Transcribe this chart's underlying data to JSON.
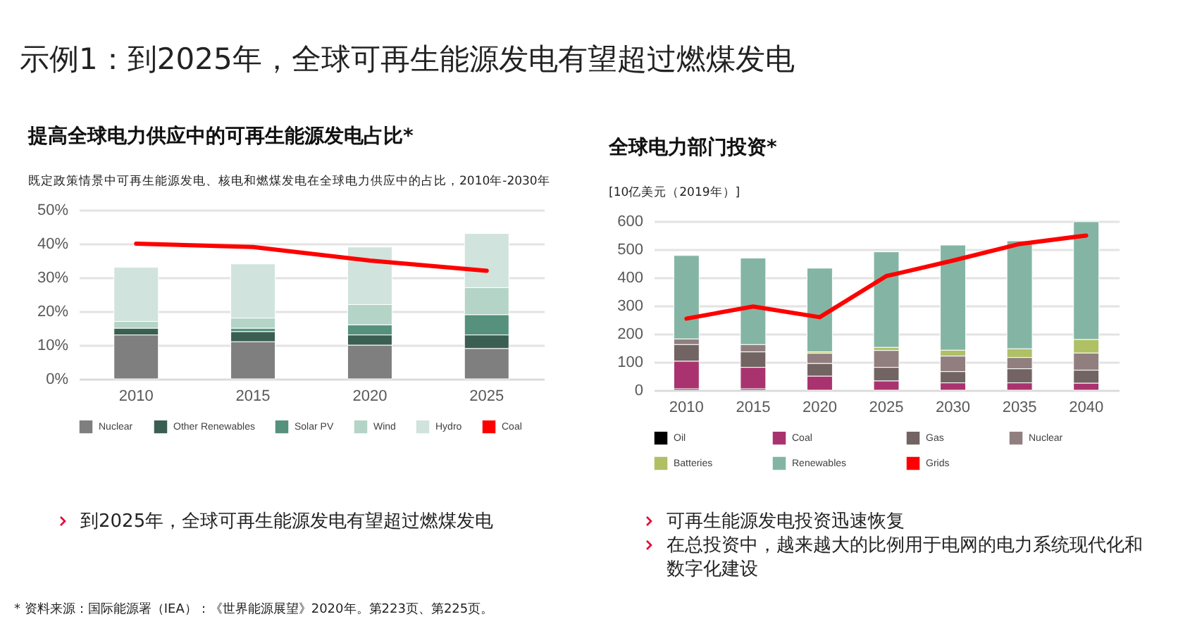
{
  "chart_data": [
    {
      "type": "other",
      "title": "示例1：到2025年，全球可再生能源发电有望超过燃煤发电",
      "annotations": [
        "* 资料来源：国际能源署（IEA）：《世界能源展望》2020年。第223页、第225页。"
      ]
    },
    {
      "type": "bar",
      "title": "提高全球电力供应中的可再生能源发电占比*",
      "subtitle": "既定政策情景中可再生能源发电、核电和燃煤发电在全球电力供应中的占比，2010年-2030年",
      "categories": [
        "2010",
        "2015",
        "2020",
        "2025"
      ],
      "stacked": true,
      "ylim": [
        0,
        50
      ],
      "yticks": [
        {
          "value": 0,
          "label": "0%"
        },
        {
          "value": 10,
          "label": "10%"
        },
        {
          "value": 20,
          "label": "20%"
        },
        {
          "value": 30,
          "label": "30%"
        },
        {
          "value": 40,
          "label": "40%"
        },
        {
          "value": 50,
          "label": "50%"
        }
      ],
      "grid": "y",
      "legend": "bottom",
      "series": [
        {
          "name": "Nuclear",
          "color": "#7f7f7f",
          "values": [
            13,
            11,
            10,
            9
          ]
        },
        {
          "name": "Other Renewables",
          "color": "#3a5f52",
          "values": [
            2,
            3,
            3,
            4
          ]
        },
        {
          "name": "Solar PV",
          "color": "#55917d",
          "values": [
            0,
            1,
            3,
            6
          ]
        },
        {
          "name": "Wind",
          "color": "#b3d4c7",
          "values": [
            2,
            3,
            6,
            8
          ]
        },
        {
          "name": "Hydro",
          "color": "#d0e3dd",
          "values": [
            16,
            16,
            17,
            16
          ]
        },
        {
          "name": "Coal",
          "color": "#ff0000",
          "type": "line",
          "values": [
            40,
            39,
            35,
            32
          ]
        }
      ],
      "annotations": [
        "到2025年，全球可再生能源发电有望超过燃煤发电"
      ]
    },
    {
      "type": "bar",
      "title": "全球电力部门投资*",
      "subtitle": "[10亿美元（2019年）]",
      "categories": [
        "2010",
        "2015",
        "2020",
        "2025",
        "2030",
        "2035",
        "2040"
      ],
      "stacked": true,
      "ylim": [
        0,
        600
      ],
      "yticks": [
        0,
        100,
        200,
        300,
        400,
        500,
        600
      ],
      "grid": "y",
      "legend": "bottom",
      "series": [
        {
          "name": "Oil",
          "color": "#000000",
          "values": [
            5,
            5,
            null,
            null,
            null,
            null,
            null
          ]
        },
        {
          "name": "Coal",
          "color": "#a9336f",
          "values": [
            98,
            76,
            50,
            33,
            26,
            26,
            25
          ]
        },
        {
          "name": "Gas",
          "color": "#726463",
          "values": [
            59,
            55,
            45,
            48,
            40,
            50,
            46
          ]
        },
        {
          "name": "Nuclear",
          "color": "#917f80",
          "values": [
            20,
            26,
            36,
            60,
            55,
            40,
            61
          ]
        },
        {
          "name": "Batteries",
          "color": "#afc065",
          "values": [
            0,
            0,
            5,
            11,
            21,
            31,
            48
          ]
        },
        {
          "name": "Renewables",
          "color": "#84b5a4",
          "values": [
            296,
            307,
            297,
            339,
            373,
            383,
            418
          ]
        },
        {
          "name": "Grids",
          "color": "#ff0000",
          "type": "line",
          "values": [
            254,
            297,
            259,
            405,
            460,
            519,
            549
          ]
        }
      ],
      "annotations": [
        "可再生能源发电投资迅速恢复",
        "在总投资中，越来越大的比例用于电网的电力系统现代化和数字化建设"
      ]
    }
  ]
}
